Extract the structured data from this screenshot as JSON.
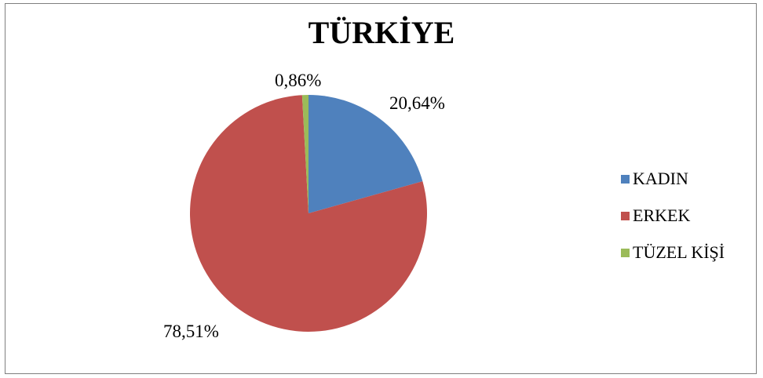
{
  "chart_data": {
    "type": "pie",
    "title": "TÜRKİYE",
    "categories": [
      "KADIN",
      "ERKEK",
      "TÜZEL KİŞİ"
    ],
    "values": [
      20.64,
      78.51,
      0.86
    ],
    "value_labels": [
      "20,64%",
      "78,51%",
      "0,86%"
    ],
    "colors": [
      "#4f81bd",
      "#c0504d",
      "#9bbb59"
    ],
    "start_angle_deg": 0,
    "direction": "clockwise",
    "legend_position": "right",
    "grid": false
  }
}
